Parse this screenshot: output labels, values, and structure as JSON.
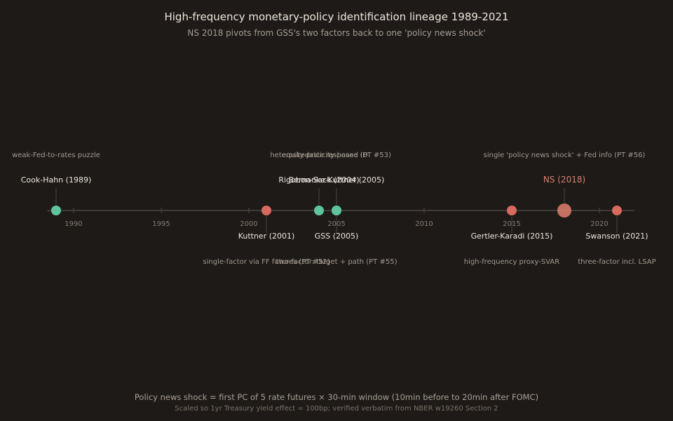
{
  "header": {
    "title": "High-frequency monetary-policy identification lineage 1989-2021",
    "subtitle": "NS 2018 pivots from GSS's two factors back to one 'policy news shock'"
  },
  "colors": {
    "background": "#1e1a17",
    "green": "#5ec4a0",
    "red": "#d96a5f",
    "highlight": "#e07f6e",
    "axis": "#4a4440",
    "tick_text": "#857d74",
    "label_text": "#ece6df",
    "note_text": "#a39a90"
  },
  "chart_data": {
    "type": "timeline",
    "x_range": [
      1988.5,
      2022
    ],
    "ticks": [
      1990,
      1995,
      2000,
      2005,
      2010,
      2015,
      2020
    ],
    "events": [
      {
        "year": 1989,
        "label": "Cook-Hahn (1989)",
        "note": "weak-Fed-to-rates puzzle",
        "color": "green",
        "side": "above",
        "highlight": false
      },
      {
        "year": 2001,
        "label": "Kuttner (2001)",
        "note": "single-factor via FF futures (PT #52)",
        "color": "red",
        "side": "below",
        "highlight": false
      },
      {
        "year": 2004,
        "label": "Rigobon-Sack (2004)",
        "note": "heteroskedasticity-based ID",
        "color": "green",
        "side": "above",
        "highlight": false
      },
      {
        "year": 2005,
        "label": "Bernanke-Kuttner (2005)",
        "note": "equity-price response (PT #53)",
        "color": "green",
        "side": "above",
        "highlight": false
      },
      {
        "year": 2005,
        "label": "GSS (2005)",
        "note": "two-factor: target + path (PT #55)",
        "color": "green",
        "side": "below",
        "highlight": false
      },
      {
        "year": 2015,
        "label": "Gertler-Karadi (2015)",
        "note": "high-frequency proxy-SVAR",
        "color": "red",
        "side": "below",
        "highlight": false
      },
      {
        "year": 2018,
        "label": "NS (2018)",
        "note": "single 'policy news shock' + Fed info (PT #56)",
        "color": "highlight",
        "side": "above",
        "highlight": true
      },
      {
        "year": 2021,
        "label": "Swanson (2021)",
        "note": "three-factor incl. LSAP",
        "color": "red",
        "side": "below",
        "highlight": false
      }
    ]
  },
  "footer": {
    "main": "Policy news shock = first PC of 5 rate futures × 30-min window (10min before to 20min after FOMC)",
    "note": "Scaled so 1yr Treasury yield effect = 100bp; verified verbatim from NBER w19260 Section 2"
  }
}
